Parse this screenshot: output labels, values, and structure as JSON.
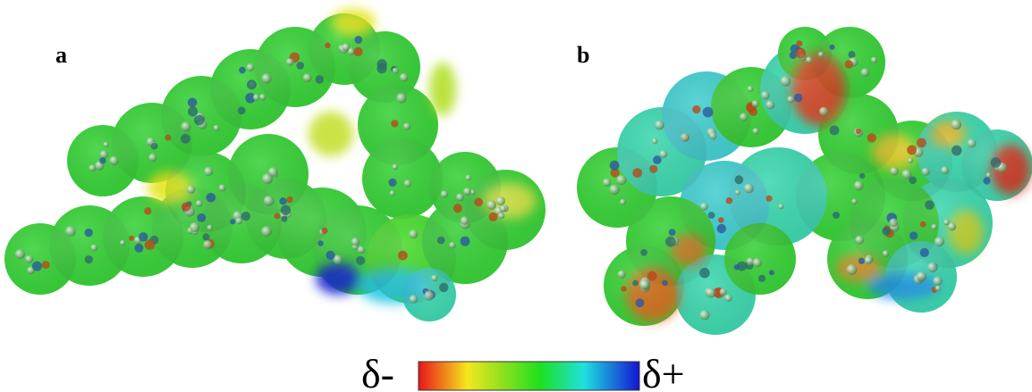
{
  "panels": [
    {
      "label": "a"
    },
    {
      "label": "b"
    }
  ],
  "colorbar": {
    "min_label": "δ-",
    "max_label": "δ+"
  }
}
